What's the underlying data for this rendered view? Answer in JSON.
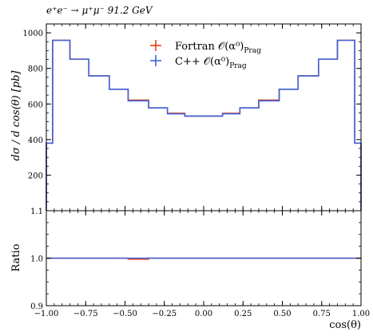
{
  "chart_data": [
    {
      "type": "line",
      "title": "e⁺e⁻ → μ⁺μ⁻ 91.2 GeV",
      "ylabel": "dσ / d cos(θ) [pb]",
      "xlabel": "",
      "xlim": [
        -1.0,
        1.0
      ],
      "ylim": [
        0,
        1050
      ],
      "yticks": [
        {
          "v": 200,
          "label": "200"
        },
        {
          "v": 400,
          "label": "400"
        },
        {
          "v": 600,
          "label": "600"
        },
        {
          "v": 800,
          "label": "800"
        },
        {
          "v": 1000,
          "label": "1000"
        }
      ],
      "legend_position": "top-center",
      "bin_edges": [
        -1.0,
        -0.96,
        -0.85,
        -0.73,
        -0.6,
        -0.48,
        -0.35,
        -0.23,
        -0.12,
        0.0,
        0.12,
        0.23,
        0.35,
        0.48,
        0.6,
        0.73,
        0.85,
        0.96,
        1.0
      ],
      "series": [
        {
          "name": "Fortran 𝒪(α⁰)",
          "name_sub": "Prag",
          "color": "#f03c14",
          "values": [
            380,
            958,
            852,
            758,
            683,
            622,
            578,
            548,
            532,
            532,
            548,
            578,
            622,
            683,
            758,
            852,
            958,
            380
          ]
        },
        {
          "name": "C++ 𝒪(α⁰)",
          "name_sub": "Prag",
          "color": "#3c64dc",
          "values": [
            380,
            958,
            852,
            758,
            683,
            618,
            578,
            545,
            532,
            532,
            545,
            578,
            618,
            683,
            758,
            852,
            958,
            380
          ]
        }
      ]
    },
    {
      "type": "line",
      "ylabel": "Ratio",
      "xlabel": "cos(θ)",
      "xlim": [
        -1.0,
        1.0
      ],
      "ylim": [
        0.9,
        1.1
      ],
      "yticks": [
        {
          "v": 0.9,
          "label": "0.9"
        },
        {
          "v": 1.0,
          "label": "1.0"
        },
        {
          "v": 1.1,
          "label": "1.1"
        }
      ],
      "xticks": [
        {
          "v": -1.0,
          "label": "−1.00"
        },
        {
          "v": -0.75,
          "label": "−0.75"
        },
        {
          "v": -0.5,
          "label": "−0.50"
        },
        {
          "v": -0.25,
          "label": "−0.25"
        },
        {
          "v": 0.0,
          "label": "0.00"
        },
        {
          "v": 0.25,
          "label": "0.25"
        },
        {
          "v": 0.5,
          "label": "0.50"
        },
        {
          "v": 0.75,
          "label": "0.75"
        },
        {
          "v": 1.0,
          "label": "1.00"
        }
      ],
      "bin_edges": [
        -1.0,
        -0.96,
        -0.85,
        -0.73,
        -0.6,
        -0.48,
        -0.35,
        -0.23,
        -0.12,
        0.0,
        0.12,
        0.23,
        0.35,
        0.48,
        0.6,
        0.73,
        0.85,
        0.96,
        1.0
      ],
      "series": [
        {
          "name": "Fortran 𝒪(α⁰)",
          "color": "#f03c14",
          "values": [
            1.0,
            1.0,
            1.0,
            1.0,
            1.0,
            0.998,
            1.0,
            1.0,
            1.0,
            1.0,
            1.0,
            1.0,
            1.0,
            1.0,
            1.0,
            1.0,
            1.0,
            1.0
          ]
        },
        {
          "name": "C++ 𝒪(α⁰)",
          "color": "#3c64dc",
          "values": [
            1.0,
            1.0,
            1.0,
            1.0,
            1.0,
            1.0,
            1.0,
            1.0,
            1.0,
            1.0,
            1.0,
            1.0,
            1.0,
            1.0,
            1.0,
            1.0,
            1.0,
            1.0
          ]
        }
      ]
    }
  ]
}
